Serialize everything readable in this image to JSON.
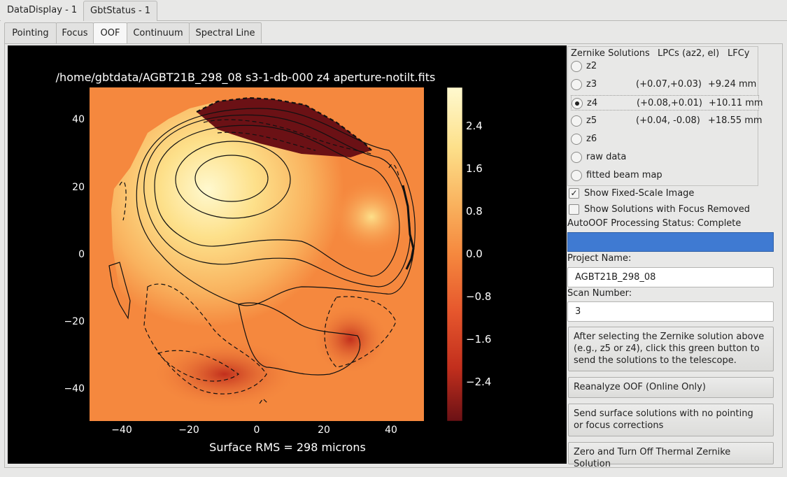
{
  "window_tabs": [
    {
      "label": "DataDisplay - 1",
      "active": true
    },
    {
      "label": "GbtStatus - 1",
      "active": false
    }
  ],
  "sub_tabs": [
    {
      "label": "Pointing",
      "active": false
    },
    {
      "label": "Focus",
      "active": false
    },
    {
      "label": "OOF",
      "active": true
    },
    {
      "label": "Continuum",
      "active": false
    },
    {
      "label": "Spectral Line",
      "active": false
    }
  ],
  "plot": {
    "title": "/home/gbtdata/AGBT21B_298_08 s3-1-db-000 z4 aperture-notilt.fits",
    "footer": "Surface RMS = 298 microns",
    "x_ticks": [
      "−40",
      "−20",
      "0",
      "20",
      "40"
    ],
    "y_ticks": [
      "40",
      "20",
      "0",
      "−20",
      "−40"
    ],
    "colorbar_ticks": [
      "2.4",
      "1.6",
      "0.8",
      "0.0",
      "−0.8",
      "−1.6",
      "−2.4"
    ],
    "colormap": [
      "#fff9cf",
      "#fde08a",
      "#f9b25e",
      "#f5883e",
      "#e6572d",
      "#c22f1d",
      "#6b1115"
    ],
    "background": "#000000"
  },
  "zernike": {
    "header": {
      "title": "Zernike Solutions",
      "lpc": "LPCs (az2, el)",
      "lfc": "LFCy"
    },
    "options": [
      {
        "label": "z2",
        "lpc": "",
        "lfc": "",
        "selected": false
      },
      {
        "label": "z3",
        "lpc": "(+0.07,+0.03)",
        "lfc": "+9.24 mm",
        "selected": false
      },
      {
        "label": "z4",
        "lpc": "(+0.08,+0.01)",
        "lfc": "+10.11 mm",
        "selected": true
      },
      {
        "label": "z5",
        "lpc": "(+0.04, -0.08)",
        "lfc": "+18.55 mm",
        "selected": false
      },
      {
        "label": "z6",
        "lpc": "",
        "lfc": "",
        "selected": false
      },
      {
        "label": "raw data",
        "lpc": "",
        "lfc": "",
        "selected": false
      },
      {
        "label": "fitted beam map",
        "lpc": "",
        "lfc": "",
        "selected": false
      }
    ]
  },
  "checks": {
    "fixed_scale": {
      "label": "Show Fixed-Scale Image",
      "checked": true
    },
    "focus_removed": {
      "label": "Show Solutions with Focus Removed",
      "checked": false
    }
  },
  "status": {
    "text": "AutoOOF Processing Status: Complete",
    "bar_color": "#3f7ad2"
  },
  "project": {
    "label": "Project Name:",
    "value": "AGBT21B_298_08"
  },
  "scan": {
    "label": "Scan Number:",
    "value": "3"
  },
  "buttons": {
    "send_green": "After selecting the Zernike solution above\n (e.g., z5 or z4), click this green button to\n send the solutions to the telescope.",
    "reanalyze": "Reanalyze OOF (Online Only)",
    "send_surface": "Send surface solutions with no pointing\n or focus corrections",
    "zero_thermal": "Zero and Turn Off Thermal Zernike Solution"
  }
}
